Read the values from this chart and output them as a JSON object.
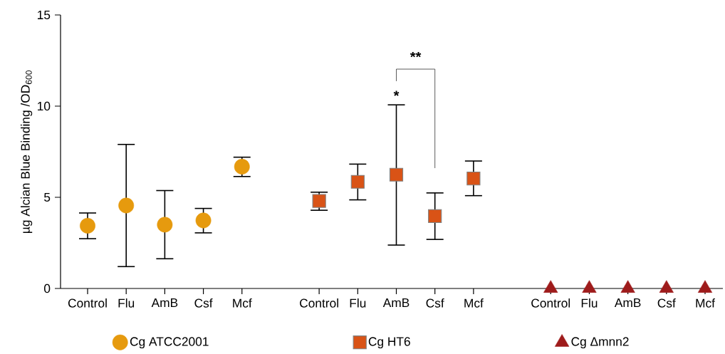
{
  "chart_data": {
    "type": "scatter",
    "ylabel": "µg Alcian Blue Binding /OD$_{600}$",
    "categories": [
      "Control",
      "Flu",
      "AmB",
      "Csf",
      "Mcf",
      null,
      "Control",
      "Flu",
      "AmB",
      "Csf",
      "Mcf",
      null,
      "Control",
      "Flu",
      "AmB",
      "Csf",
      "Mcf"
    ],
    "series": [
      {
        "name": "Cg ATCC2001",
        "color": "#e69a0e",
        "marker": "circle",
        "values": [
          3.44,
          4.55,
          3.5,
          3.73,
          6.68,
          null,
          null,
          null,
          null,
          null,
          null,
          null,
          null,
          null,
          null,
          null,
          null
        ],
        "errors": [
          [
            2.73,
            4.14
          ],
          [
            1.2,
            7.9
          ],
          [
            1.63,
            5.37
          ],
          [
            3.05,
            4.39
          ],
          [
            6.14,
            7.2
          ],
          null,
          null,
          null,
          null,
          null,
          null,
          null,
          null,
          null,
          null,
          null,
          null
        ]
      },
      {
        "name": "Cg HT6",
        "color": "#d95316",
        "marker": "square",
        "values": [
          null,
          null,
          null,
          null,
          null,
          null,
          4.8,
          5.85,
          6.24,
          3.97,
          6.03,
          null,
          null,
          null,
          null,
          null,
          null
        ],
        "errors": [
          null,
          null,
          null,
          null,
          null,
          null,
          [
            4.29,
            5.28
          ],
          [
            4.86,
            6.82
          ],
          [
            2.38,
            10.07
          ],
          [
            2.69,
            5.24
          ],
          [
            5.09,
            6.99
          ],
          null,
          null,
          null,
          null,
          null,
          null
        ]
      },
      {
        "name": "Cg Δmnn2",
        "color": "#9e1b1b",
        "marker": "triangle",
        "values": [
          null,
          null,
          null,
          null,
          null,
          null,
          null,
          null,
          null,
          null,
          null,
          null,
          0,
          0,
          0,
          0,
          0
        ]
      }
    ],
    "ylim": [
      0,
      15
    ],
    "yticks": [
      0,
      5,
      10,
      15
    ],
    "legend": "bottom",
    "annotations": [
      "*",
      "**"
    ]
  }
}
